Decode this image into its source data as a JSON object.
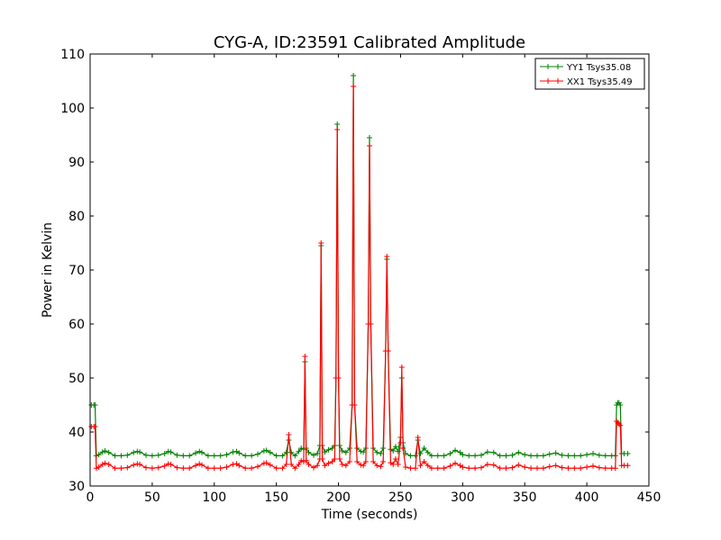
{
  "chart_data": {
    "type": "line",
    "title": "CYG-A, ID:23591 Calibrated Amplitude",
    "xlabel": "Time (seconds)",
    "ylabel": "Power in Kelvin",
    "xlim": [
      0,
      450
    ],
    "ylim": [
      30,
      110
    ],
    "xticks": [
      0,
      50,
      100,
      150,
      200,
      250,
      300,
      350,
      400,
      450
    ],
    "yticks": [
      30,
      40,
      50,
      60,
      70,
      80,
      90,
      100,
      110
    ],
    "grid": false,
    "legend": "top-right",
    "marker": "+",
    "series": [
      {
        "name": "YY1 Tsys35.08",
        "color": "#008000",
        "x": [
          1,
          3,
          4,
          5,
          7,
          10,
          12,
          15,
          20,
          25,
          30,
          35,
          38,
          40,
          45,
          50,
          55,
          60,
          63,
          65,
          70,
          75,
          80,
          85,
          88,
          90,
          95,
          100,
          105,
          110,
          115,
          118,
          120,
          125,
          130,
          135,
          140,
          142,
          145,
          150,
          155,
          158,
          160,
          162,
          165,
          168,
          170,
          172,
          173,
          174,
          176,
          180,
          183,
          185,
          186,
          187,
          189,
          192,
          195,
          197,
          198,
          199,
          200,
          201,
          203,
          206,
          209,
          211,
          212,
          213,
          215,
          218,
          220,
          222,
          224,
          225,
          226,
          228,
          231,
          234,
          236,
          238,
          239,
          240,
          242,
          244,
          246,
          248,
          250,
          251,
          252,
          254,
          258,
          262,
          264,
          266,
          269,
          272,
          275,
          280,
          285,
          290,
          294,
          298,
          300,
          305,
          310,
          315,
          320,
          325,
          330,
          335,
          340,
          345,
          350,
          355,
          360,
          365,
          370,
          375,
          380,
          385,
          390,
          395,
          400,
          405,
          410,
          415,
          420,
          423,
          424,
          425,
          426,
          427,
          428,
          430,
          433
        ],
        "y": [
          45,
          45,
          45,
          35.6,
          35.8,
          36.3,
          36.5,
          36.2,
          35.6,
          35.6,
          35.7,
          36.2,
          36.4,
          36.3,
          35.7,
          35.6,
          35.7,
          36.0,
          36.4,
          36.3,
          35.7,
          35.6,
          35.6,
          36.1,
          36.4,
          36.2,
          35.6,
          35.6,
          35.6,
          35.8,
          36.3,
          36.4,
          36.1,
          35.6,
          35.6,
          35.9,
          36.5,
          36.6,
          36.2,
          35.6,
          35.6,
          36.2,
          38.5,
          36.2,
          35.6,
          36.4,
          37.0,
          36.8,
          53.0,
          37.0,
          36.2,
          35.7,
          36.0,
          37.5,
          74.5,
          37.5,
          36.3,
          36.7,
          37.0,
          37.5,
          50.0,
          97.0,
          50.0,
          37.5,
          36.5,
          36.2,
          37.0,
          45.0,
          106.0,
          45.0,
          37.0,
          36.4,
          36.3,
          37.0,
          60.0,
          94.5,
          60.0,
          37.0,
          36.2,
          36.0,
          37.0,
          55.0,
          72.0,
          55.0,
          36.8,
          36.5,
          37.3,
          36.4,
          39.0,
          50.0,
          38.0,
          36.0,
          35.6,
          35.6,
          38.5,
          36.0,
          37.0,
          36.2,
          35.6,
          35.6,
          35.6,
          36.0,
          36.6,
          36.2,
          35.8,
          35.6,
          35.6,
          35.7,
          36.3,
          36.2,
          35.6,
          35.6,
          35.7,
          36.2,
          35.8,
          35.6,
          35.6,
          35.6,
          35.9,
          36.1,
          35.7,
          35.6,
          35.6,
          35.6,
          35.8,
          36.0,
          35.7,
          35.6,
          35.6,
          35.6,
          45.0,
          45.4,
          45.4,
          45.0,
          36.0,
          36.0,
          36.0
        ]
      },
      {
        "name": "XX1 Tsys35.49",
        "color": "#ff0000",
        "x": [
          1,
          3,
          4,
          5,
          7,
          10,
          12,
          15,
          20,
          25,
          30,
          35,
          38,
          40,
          45,
          50,
          55,
          60,
          63,
          65,
          70,
          75,
          80,
          85,
          88,
          90,
          95,
          100,
          105,
          110,
          115,
          118,
          120,
          125,
          130,
          135,
          140,
          142,
          145,
          150,
          155,
          158,
          160,
          162,
          165,
          168,
          170,
          172,
          173,
          174,
          176,
          180,
          183,
          185,
          186,
          187,
          189,
          192,
          195,
          197,
          198,
          199,
          200,
          201,
          203,
          206,
          209,
          211,
          212,
          213,
          215,
          218,
          220,
          222,
          224,
          225,
          226,
          228,
          231,
          234,
          236,
          238,
          239,
          240,
          242,
          244,
          246,
          248,
          250,
          251,
          252,
          254,
          258,
          262,
          264,
          266,
          269,
          272,
          275,
          280,
          285,
          290,
          294,
          298,
          300,
          305,
          310,
          315,
          320,
          325,
          330,
          335,
          340,
          345,
          350,
          355,
          360,
          365,
          370,
          375,
          380,
          385,
          390,
          395,
          400,
          405,
          410,
          415,
          420,
          423,
          424,
          425,
          426,
          427,
          428,
          430,
          433
        ],
        "y": [
          41,
          41,
          41,
          33.3,
          33.5,
          34.0,
          34.2,
          34.0,
          33.3,
          33.3,
          33.4,
          33.9,
          34.1,
          34.0,
          33.4,
          33.3,
          33.4,
          33.7,
          34.1,
          34.0,
          33.4,
          33.3,
          33.3,
          33.8,
          34.1,
          33.9,
          33.3,
          33.3,
          33.3,
          33.5,
          34.0,
          34.1,
          33.8,
          33.3,
          33.3,
          33.6,
          34.2,
          34.3,
          33.9,
          33.3,
          33.3,
          34.0,
          39.5,
          34.0,
          33.3,
          34.0,
          34.7,
          34.5,
          54.0,
          34.7,
          34.0,
          33.4,
          33.8,
          35.0,
          75.0,
          35.0,
          33.8,
          34.2,
          34.5,
          35.0,
          50.0,
          96.0,
          50.0,
          35.0,
          34.0,
          33.8,
          34.5,
          45.0,
          104.0,
          45.0,
          34.5,
          33.9,
          33.8,
          34.5,
          60.0,
          93.0,
          60.0,
          34.5,
          33.8,
          33.6,
          34.5,
          55.0,
          72.5,
          55.0,
          34.3,
          34.0,
          35.0,
          34.0,
          38.0,
          52.0,
          37.0,
          33.5,
          33.3,
          33.3,
          39.0,
          33.8,
          34.5,
          33.8,
          33.3,
          33.3,
          33.3,
          33.7,
          34.2,
          33.8,
          33.5,
          33.3,
          33.3,
          33.4,
          34.0,
          33.9,
          33.3,
          33.3,
          33.4,
          33.9,
          33.5,
          33.3,
          33.3,
          33.3,
          33.6,
          33.8,
          33.4,
          33.3,
          33.3,
          33.3,
          33.5,
          33.7,
          33.4,
          33.3,
          33.3,
          33.3,
          42.0,
          41.7,
          41.5,
          41.2,
          33.8,
          33.8,
          33.8
        ]
      }
    ]
  }
}
